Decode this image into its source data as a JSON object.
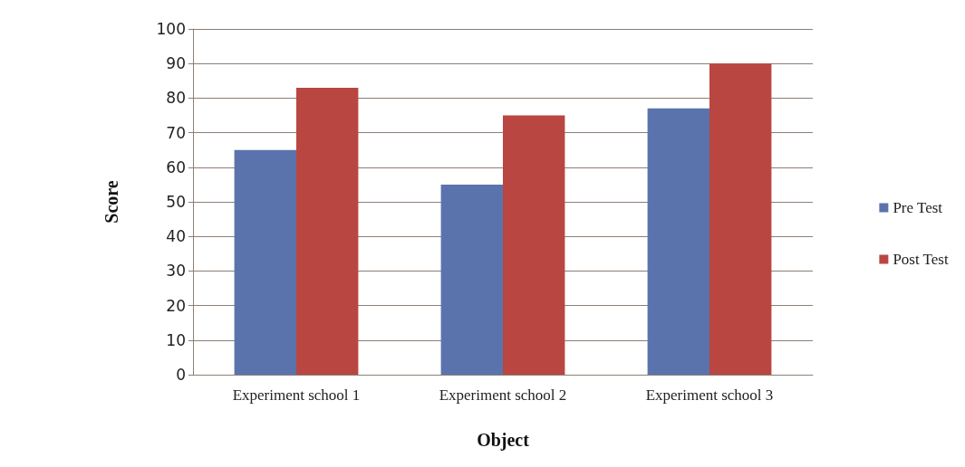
{
  "chart_data": {
    "type": "bar",
    "xlabel": "Object",
    "ylabel": "Score",
    "categories": [
      "Experiment school 1",
      "Experiment school 2",
      "Experiment school 3"
    ],
    "series": [
      {
        "name": "Pre Test",
        "color": "#5b73ad",
        "values": [
          65,
          55,
          77
        ]
      },
      {
        "name": "Post Test",
        "color": "#b94641",
        "values": [
          83,
          75,
          90
        ]
      }
    ],
    "ylim": [
      0,
      100
    ],
    "yticks": [
      0,
      10,
      20,
      30,
      40,
      50,
      60,
      70,
      80,
      90,
      100
    ],
    "grid": "y",
    "legend": "right"
  }
}
